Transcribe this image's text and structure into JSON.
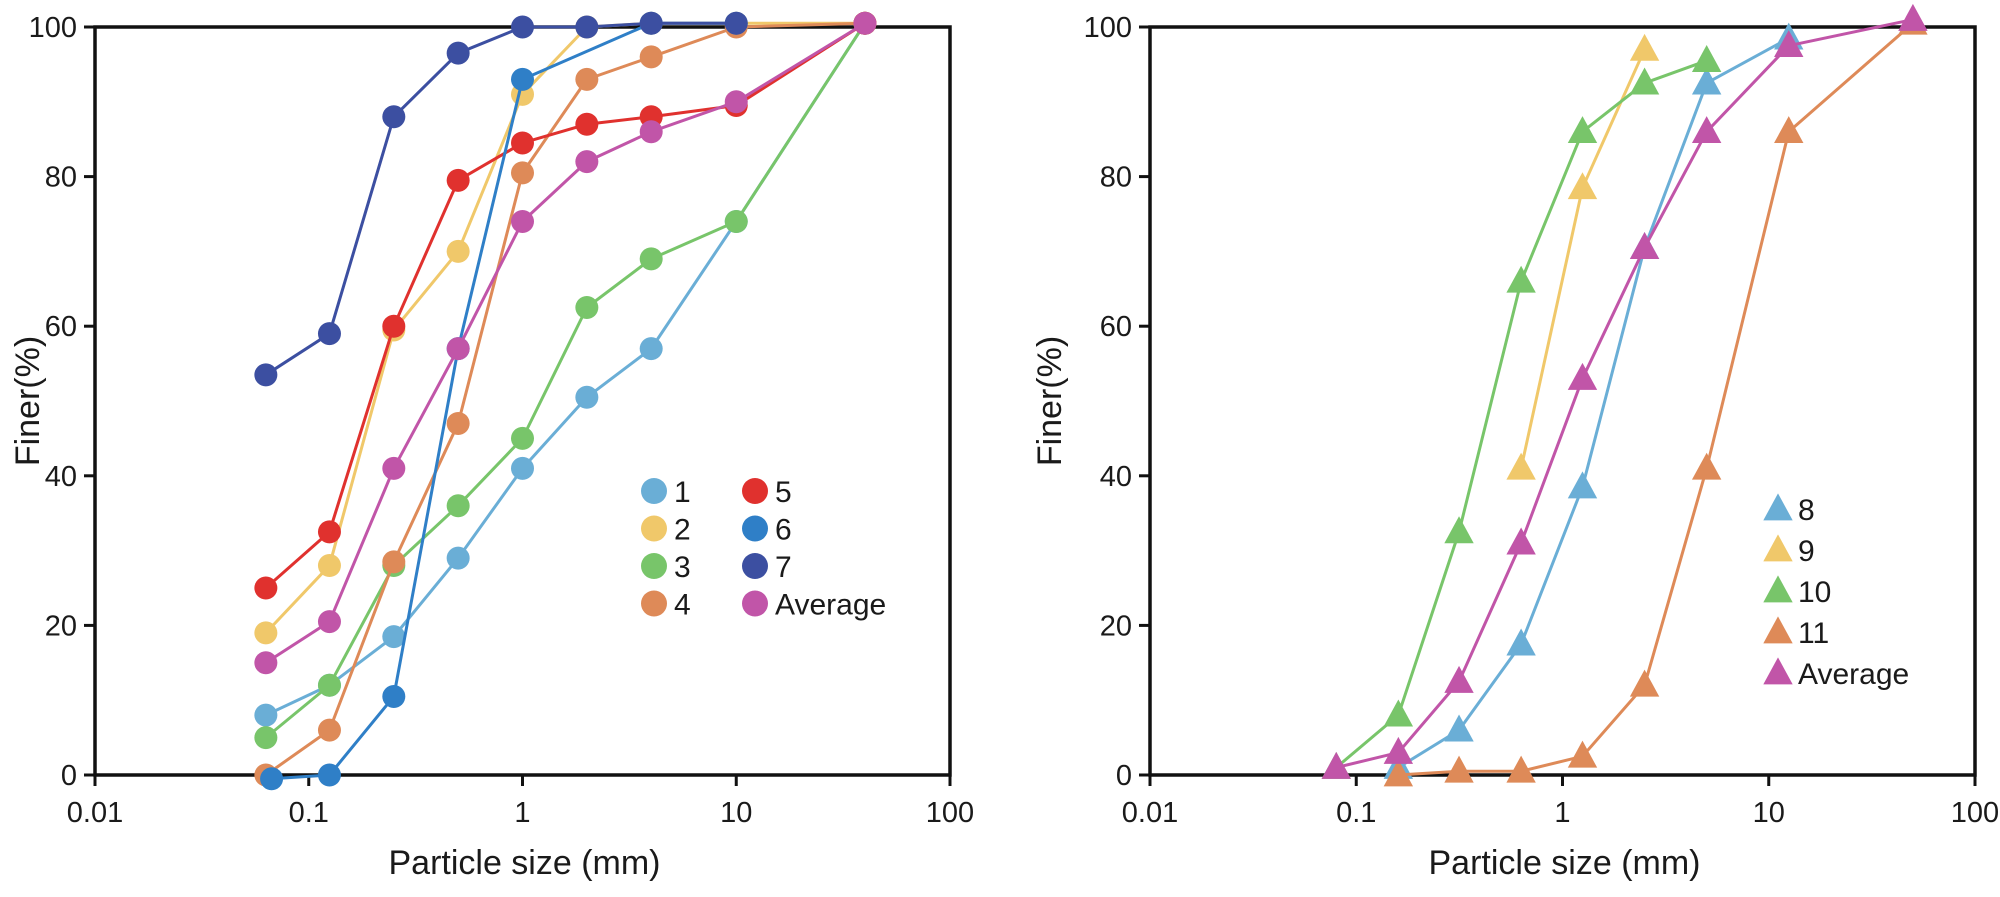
{
  "chart_data": [
    {
      "type": "line",
      "marker": "circle",
      "xscale": "log",
      "xlim": [
        0.01,
        100
      ],
      "ylim": [
        0,
        100
      ],
      "xticks": [
        "0.01",
        "0.1",
        "1",
        "10",
        "100"
      ],
      "yticks": [
        "0",
        "20",
        "40",
        "60",
        "80",
        "100"
      ],
      "xlabel": "Particle size (mm)",
      "ylabel": "Finer(%)",
      "grid": false,
      "legend_position": "lower-right",
      "series": [
        {
          "name": "1",
          "color": "#6aaed6",
          "x": [
            0.063,
            0.125,
            0.25,
            0.5,
            1,
            2,
            4,
            10,
            40
          ],
          "y": [
            8,
            12,
            18.5,
            29,
            41,
            50.5,
            57,
            74,
            100.5
          ]
        },
        {
          "name": "2",
          "color": "#f0c86a",
          "x": [
            0.063,
            0.125,
            0.25,
            0.5,
            1,
            2,
            4,
            10,
            40
          ],
          "y": [
            19,
            28,
            59.5,
            70,
            91,
            100,
            100.5,
            100.5,
            100.5
          ]
        },
        {
          "name": "3",
          "color": "#78c56a",
          "x": [
            0.063,
            0.125,
            0.25,
            0.5,
            1,
            2,
            4,
            10,
            40
          ],
          "y": [
            5,
            12,
            28,
            36,
            45,
            62.5,
            69,
            74,
            100.5
          ]
        },
        {
          "name": "4",
          "color": "#de8a58",
          "x": [
            0.063,
            0.125,
            0.25,
            0.5,
            1,
            2,
            4,
            10,
            40
          ],
          "y": [
            0,
            6,
            28.5,
            47,
            80.5,
            93,
            96,
            100,
            100.5
          ]
        },
        {
          "name": "5",
          "color": "#e0312e",
          "x": [
            0.063,
            0.125,
            0.25,
            0.5,
            1,
            2,
            4,
            10,
            40
          ],
          "y": [
            25,
            32.5,
            60,
            79.5,
            84.5,
            87,
            88,
            89.5,
            100.5
          ]
        },
        {
          "name": "6",
          "color": "#2f7fc7",
          "x": [
            0.067,
            0.125,
            0.25,
            0.5,
            1,
            4,
            10
          ],
          "y": [
            -0.5,
            0,
            10.5,
            57,
            93,
            100.5,
            100.5
          ]
        },
        {
          "name": "7",
          "color": "#3c4fa1",
          "x": [
            0.063,
            0.125,
            0.25,
            0.5,
            1,
            2,
            4,
            10
          ],
          "y": [
            53.5,
            59,
            88,
            96.5,
            100,
            100,
            100.5,
            100.5
          ]
        },
        {
          "name": "Average",
          "color": "#c155a8",
          "x": [
            0.063,
            0.125,
            0.25,
            0.5,
            1,
            2,
            4,
            10,
            40
          ],
          "y": [
            15,
            20.5,
            41,
            57,
            74,
            82,
            86,
            90,
            100.5
          ]
        }
      ]
    },
    {
      "type": "line",
      "marker": "triangle",
      "xscale": "log",
      "xlim": [
        0.01,
        100
      ],
      "ylim": [
        0,
        100
      ],
      "xticks": [
        "0.01",
        "0.1",
        "1",
        "10",
        "100"
      ],
      "yticks": [
        "0",
        "20",
        "40",
        "60",
        "80",
        "100"
      ],
      "xlabel": "Particle size (mm)",
      "ylabel": "Finer(%)",
      "grid": false,
      "legend_position": "lower-right",
      "series": [
        {
          "name": "8",
          "color": "#6aaed6",
          "x": [
            0.16,
            0.315,
            0.63,
            1.25,
            2.5,
            5,
            12.5
          ],
          "y": [
            1,
            6,
            17.5,
            38.5,
            70.5,
            92.5,
            98.5
          ]
        },
        {
          "name": "9",
          "color": "#f0c86a",
          "x": [
            0.63,
            1.25,
            2.5
          ],
          "y": [
            41,
            78.5,
            97
          ]
        },
        {
          "name": "10",
          "color": "#78c56a",
          "x": [
            0.08,
            0.16,
            0.315,
            0.63,
            1.25,
            2.5,
            5
          ],
          "y": [
            1,
            8,
            32.5,
            66,
            86,
            92.5,
            95.5
          ]
        },
        {
          "name": "11",
          "color": "#de8a58",
          "x": [
            0.16,
            0.315,
            0.63,
            1.25,
            2.5,
            5,
            12.5,
            50
          ],
          "y": [
            0,
            0.5,
            0.5,
            2.5,
            12,
            41,
            86,
            100.5
          ]
        },
        {
          "name": "Average",
          "color": "#c155a8",
          "x": [
            0.08,
            0.16,
            0.315,
            0.63,
            1.25,
            2.5,
            5,
            12.5,
            50
          ],
          "y": [
            1,
            3,
            12.5,
            31,
            53,
            70.5,
            86,
            97.5,
            101
          ]
        }
      ]
    }
  ]
}
